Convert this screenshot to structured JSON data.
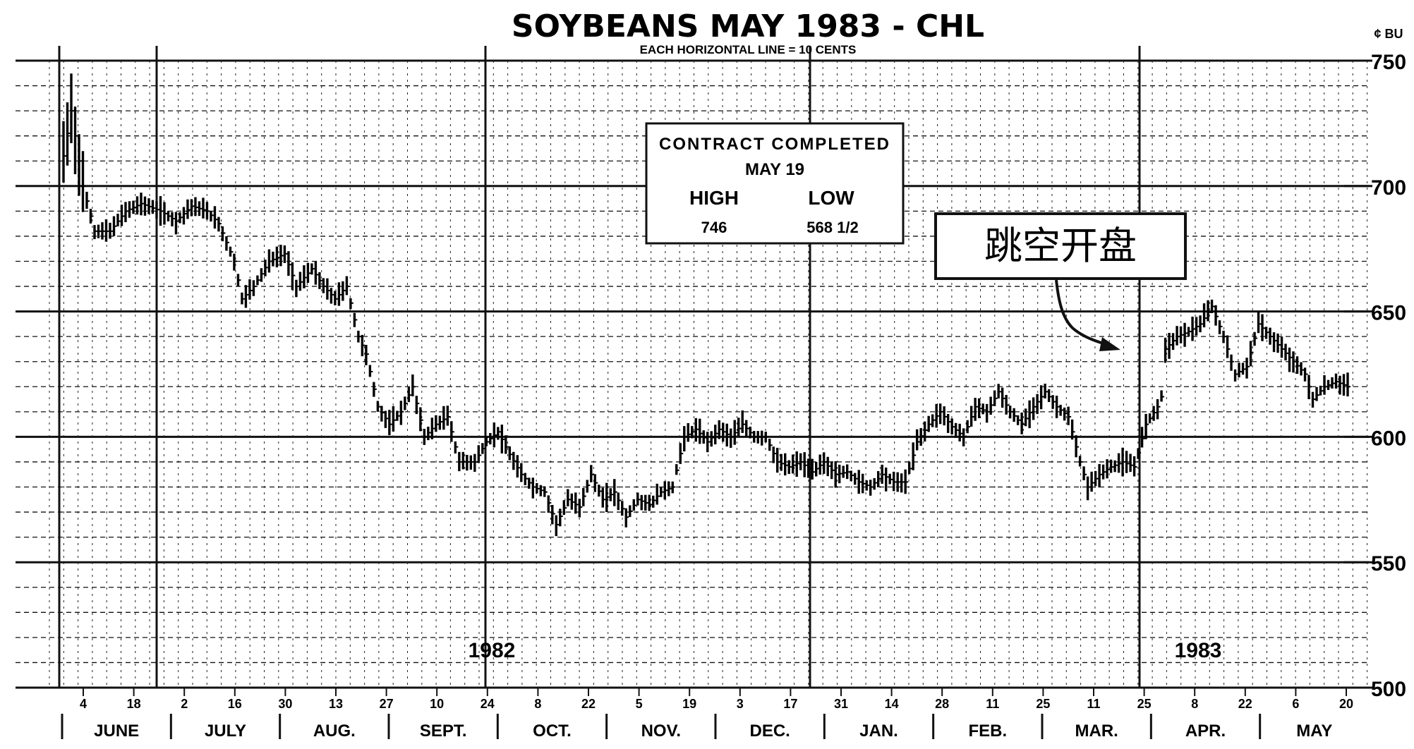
{
  "chart_data": {
    "type": "bar",
    "subtype": "ohlc-range",
    "title": "SOYBEANS MAY 1983 - CHL",
    "subtitle": "EACH HORIZONTAL LINE = 10 CENTS",
    "ylabel": "¢ BU",
    "ylim": [
      500,
      750
    ],
    "y_ticks": [
      500,
      550,
      600,
      650,
      700,
      750
    ],
    "y_tick_labels": [
      "500",
      "550",
      "600",
      "650",
      "700",
      "750"
    ],
    "grid": true,
    "months": [
      "JUNE",
      "JULY",
      "AUG.",
      "SEPT.",
      "OCT.",
      "NOV.",
      "DEC.",
      "JAN.",
      "FEB.",
      "MAR.",
      "APR.",
      "MAY"
    ],
    "day_ticks": [
      "4",
      "18",
      "2",
      "16",
      "30",
      "13",
      "27",
      "10",
      "24",
      "8",
      "22",
      "5",
      "19",
      "3",
      "17",
      "31",
      "14",
      "28",
      "11",
      "25",
      "11",
      "25",
      "8",
      "22",
      "6",
      "20"
    ],
    "year_labels": [
      "1982",
      "1983"
    ],
    "annotation_box": {
      "line1": "CONTRACT COMPLETED",
      "line2": "MAY 19",
      "high_label": "HIGH",
      "low_label": "LOW",
      "high_value": "746",
      "low_value": "568 1/2"
    },
    "callout": "跳空开盘",
    "keypoints": [
      {
        "t": 0,
        "v": 712
      },
      {
        "t": 2,
        "v": 730
      },
      {
        "t": 5,
        "v": 700
      },
      {
        "t": 8,
        "v": 682
      },
      {
        "t": 12,
        "v": 682
      },
      {
        "t": 16,
        "v": 690
      },
      {
        "t": 20,
        "v": 693
      },
      {
        "t": 25,
        "v": 690
      },
      {
        "t": 29,
        "v": 686
      },
      {
        "t": 33,
        "v": 692
      },
      {
        "t": 37,
        "v": 690
      },
      {
        "t": 40,
        "v": 685
      },
      {
        "t": 44,
        "v": 670
      },
      {
        "t": 46,
        "v": 655
      },
      {
        "t": 49,
        "v": 660
      },
      {
        "t": 53,
        "v": 670
      },
      {
        "t": 57,
        "v": 673
      },
      {
        "t": 60,
        "v": 660
      },
      {
        "t": 64,
        "v": 667
      },
      {
        "t": 67,
        "v": 660
      },
      {
        "t": 70,
        "v": 655
      },
      {
        "t": 73,
        "v": 660
      },
      {
        "t": 76,
        "v": 640
      },
      {
        "t": 78,
        "v": 633
      },
      {
        "t": 81,
        "v": 612
      },
      {
        "t": 84,
        "v": 605
      },
      {
        "t": 87,
        "v": 610
      },
      {
        "t": 90,
        "v": 620
      },
      {
        "t": 93,
        "v": 600
      },
      {
        "t": 96,
        "v": 605
      },
      {
        "t": 99,
        "v": 608
      },
      {
        "t": 102,
        "v": 590
      },
      {
        "t": 106,
        "v": 590
      },
      {
        "t": 109,
        "v": 598
      },
      {
        "t": 112,
        "v": 602
      },
      {
        "t": 115,
        "v": 593
      },
      {
        "t": 118,
        "v": 585
      },
      {
        "t": 121,
        "v": 580
      },
      {
        "t": 124,
        "v": 578
      },
      {
        "t": 127,
        "v": 565
      },
      {
        "t": 130,
        "v": 575
      },
      {
        "t": 133,
        "v": 572
      },
      {
        "t": 136,
        "v": 585
      },
      {
        "t": 139,
        "v": 575
      },
      {
        "t": 142,
        "v": 578
      },
      {
        "t": 145,
        "v": 568
      },
      {
        "t": 148,
        "v": 575
      },
      {
        "t": 151,
        "v": 573
      },
      {
        "t": 154,
        "v": 578
      },
      {
        "t": 157,
        "v": 580
      },
      {
        "t": 160,
        "v": 600
      },
      {
        "t": 163,
        "v": 603
      },
      {
        "t": 166,
        "v": 598
      },
      {
        "t": 169,
        "v": 603
      },
      {
        "t": 172,
        "v": 600
      },
      {
        "t": 175,
        "v": 605
      },
      {
        "t": 178,
        "v": 600
      },
      {
        "t": 181,
        "v": 600
      },
      {
        "t": 184,
        "v": 590
      },
      {
        "t": 187,
        "v": 588
      },
      {
        "t": 190,
        "v": 590
      },
      {
        "t": 193,
        "v": 586
      },
      {
        "t": 196,
        "v": 590
      },
      {
        "t": 199,
        "v": 585
      },
      {
        "t": 202,
        "v": 586
      },
      {
        "t": 205,
        "v": 582
      },
      {
        "t": 208,
        "v": 580
      },
      {
        "t": 211,
        "v": 585
      },
      {
        "t": 214,
        "v": 582
      },
      {
        "t": 217,
        "v": 582
      },
      {
        "t": 220,
        "v": 598
      },
      {
        "t": 223,
        "v": 605
      },
      {
        "t": 226,
        "v": 610
      },
      {
        "t": 229,
        "v": 604
      },
      {
        "t": 232,
        "v": 600
      },
      {
        "t": 235,
        "v": 612
      },
      {
        "t": 238,
        "v": 610
      },
      {
        "t": 241,
        "v": 618
      },
      {
        "t": 244,
        "v": 610
      },
      {
        "t": 247,
        "v": 605
      },
      {
        "t": 250,
        "v": 612
      },
      {
        "t": 253,
        "v": 618
      },
      {
        "t": 256,
        "v": 612
      },
      {
        "t": 259,
        "v": 608
      },
      {
        "t": 262,
        "v": 590
      },
      {
        "t": 264,
        "v": 580
      },
      {
        "t": 267,
        "v": 585
      },
      {
        "t": 270,
        "v": 588
      },
      {
        "t": 273,
        "v": 590
      },
      {
        "t": 276,
        "v": 588
      },
      {
        "t": 279,
        "v": 605
      },
      {
        "t": 282,
        "v": 612
      },
      {
        "t": 283,
        "v": 616
      },
      {
        "t": 284,
        "v": 635
      },
      {
        "t": 287,
        "v": 640
      },
      {
        "t": 290,
        "v": 642
      },
      {
        "t": 293,
        "v": 645
      },
      {
        "t": 296,
        "v": 652
      },
      {
        "t": 299,
        "v": 640
      },
      {
        "t": 302,
        "v": 625
      },
      {
        "t": 305,
        "v": 628
      },
      {
        "t": 308,
        "v": 645
      },
      {
        "t": 311,
        "v": 640
      },
      {
        "t": 314,
        "v": 635
      },
      {
        "t": 317,
        "v": 630
      },
      {
        "t": 320,
        "v": 625
      },
      {
        "t": 322,
        "v": 615
      },
      {
        "t": 325,
        "v": 620
      },
      {
        "t": 328,
        "v": 622
      },
      {
        "t": 331,
        "v": 620
      }
    ]
  }
}
